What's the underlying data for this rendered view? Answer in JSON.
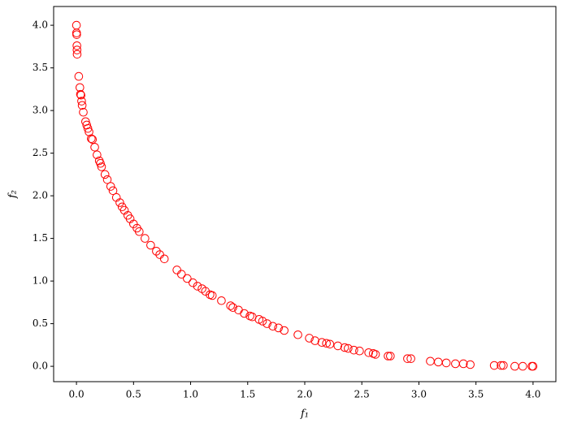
{
  "chart_data": {
    "type": "scatter",
    "xlabel": "f₁",
    "ylabel": "f₂",
    "series": [
      {
        "color": "#ff0000",
        "x": [
          0.0,
          0.001,
          0.002,
          0.004,
          0.005,
          0.006,
          0.02,
          0.03,
          0.035,
          0.04,
          0.045,
          0.05,
          0.06,
          0.08,
          0.09,
          0.1,
          0.11,
          0.13,
          0.14,
          0.16,
          0.18,
          0.2,
          0.21,
          0.22,
          0.25,
          0.27,
          0.3,
          0.32,
          0.35,
          0.38,
          0.4,
          0.42,
          0.45,
          0.47,
          0.5,
          0.53,
          0.55,
          0.6,
          0.65,
          0.7,
          0.73,
          0.77,
          0.88,
          0.92,
          0.97,
          1.02,
          1.06,
          1.1,
          1.13,
          1.17,
          1.19,
          1.27,
          1.35,
          1.37,
          1.42,
          1.47,
          1.52,
          1.54,
          1.6,
          1.63,
          1.67,
          1.72,
          1.77,
          1.82,
          1.94,
          2.04,
          2.09,
          2.15,
          2.19,
          2.22,
          2.29,
          2.35,
          2.38,
          2.43,
          2.48,
          2.56,
          2.6,
          2.62,
          2.73,
          2.75,
          2.9,
          2.93,
          3.1,
          3.17,
          3.24,
          3.32,
          3.39,
          3.45,
          3.66,
          3.72,
          3.74,
          3.84,
          3.91,
          3.99,
          4.0
        ],
        "values": [
          4.0,
          3.91,
          3.89,
          3.76,
          3.71,
          3.66,
          3.4,
          3.27,
          3.19,
          3.18,
          3.11,
          3.06,
          2.98,
          2.87,
          2.83,
          2.79,
          2.75,
          2.67,
          2.66,
          2.57,
          2.48,
          2.41,
          2.38,
          2.34,
          2.25,
          2.19,
          2.11,
          2.06,
          1.98,
          1.92,
          1.87,
          1.83,
          1.77,
          1.73,
          1.67,
          1.62,
          1.58,
          1.5,
          1.42,
          1.35,
          1.31,
          1.26,
          1.13,
          1.08,
          1.03,
          0.98,
          0.94,
          0.91,
          0.88,
          0.84,
          0.83,
          0.77,
          0.71,
          0.69,
          0.66,
          0.62,
          0.59,
          0.58,
          0.55,
          0.53,
          0.5,
          0.47,
          0.45,
          0.42,
          0.37,
          0.33,
          0.3,
          0.28,
          0.27,
          0.26,
          0.24,
          0.22,
          0.21,
          0.19,
          0.18,
          0.16,
          0.15,
          0.14,
          0.12,
          0.12,
          0.09,
          0.09,
          0.06,
          0.05,
          0.04,
          0.03,
          0.03,
          0.02,
          0.01,
          0.01,
          0.01,
          0.0,
          0.0,
          0.0,
          0.0
        ]
      }
    ],
    "xlim": [
      -0.2,
      4.2
    ],
    "ylim": [
      -0.18,
      4.22
    ],
    "xticks": [
      {
        "value": 0,
        "label": "0.0"
      },
      {
        "value": 0.5,
        "label": "0.5"
      },
      {
        "value": 1,
        "label": "1.0"
      },
      {
        "value": 1.5,
        "label": "1.5"
      },
      {
        "value": 2,
        "label": "2.0"
      },
      {
        "value": 2.5,
        "label": "2.5"
      },
      {
        "value": 3,
        "label": "3.0"
      },
      {
        "value": 3.5,
        "label": "3.5"
      },
      {
        "value": 4,
        "label": "4.0"
      }
    ],
    "yticks": [
      {
        "value": 0,
        "label": "0.0"
      },
      {
        "value": 0.5,
        "label": "0.5"
      },
      {
        "value": 1,
        "label": "1.0"
      },
      {
        "value": 1.5,
        "label": "1.5"
      },
      {
        "value": 2,
        "label": "2.0"
      },
      {
        "value": 2.5,
        "label": "2.5"
      },
      {
        "value": 3,
        "label": "3.0"
      },
      {
        "value": 3.5,
        "label": "3.5"
      },
      {
        "value": 4,
        "label": "4.0"
      }
    ],
    "grid": false
  }
}
